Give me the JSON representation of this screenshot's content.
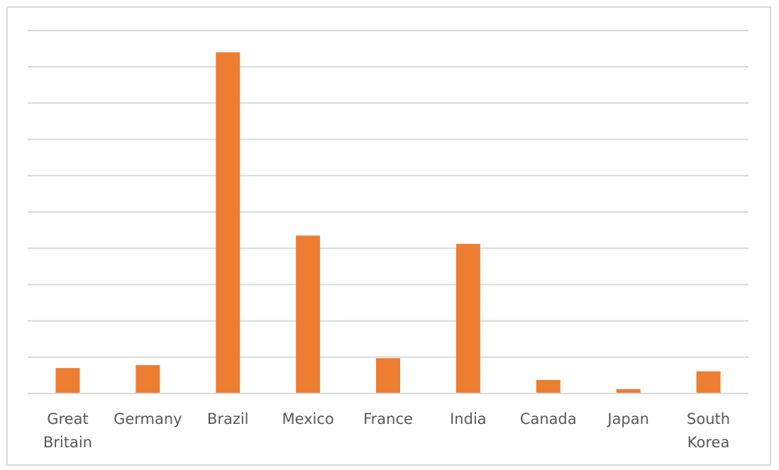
{
  "chart_data": {
    "type": "bar",
    "title": "",
    "xlabel": "",
    "ylabel": "",
    "categories": [
      "Great Britain",
      "Germany",
      "Brazil",
      "Mexico",
      "France",
      "India",
      "Canada",
      "Japan",
      "South Korea"
    ],
    "values": [
      0.7,
      0.78,
      9.4,
      4.35,
      0.97,
      4.12,
      0.37,
      0.12,
      0.61
    ],
    "ylim": [
      0,
      10
    ],
    "gridlines": 10,
    "grid": true,
    "y_tick_labels_visible": false,
    "legend": "none",
    "bar_color": "#ED7D31",
    "grid_color": "#D9D9D9",
    "axis_color": "#D9D9D9",
    "label_color": "#595959"
  }
}
